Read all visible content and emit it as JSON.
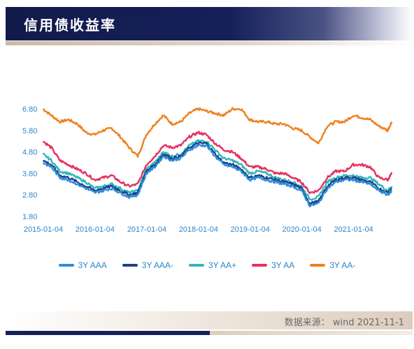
{
  "header": {
    "title": "信用债收益率"
  },
  "footer": {
    "source": "数据来源： wind 2021-11-1"
  },
  "chart_data": {
    "type": "line",
    "title": "",
    "xlabel": "",
    "ylabel": "",
    "ylim": [
      1.8,
      6.8
    ],
    "yticks": [
      "6.80",
      "5.80",
      "4.80",
      "3.80",
      "2.80",
      "1.80"
    ],
    "x_range": [
      "2015-01-04",
      "2021-10-29"
    ],
    "xticks": [
      "2015-01-04",
      "2016-01-04",
      "2017-01-04",
      "2018-01-04",
      "2019-01-04",
      "2020-01-04",
      "2021-01-04"
    ],
    "grid": false,
    "legend_position": "bottom",
    "x": [
      "2015-01",
      "2015-03",
      "2015-05",
      "2015-07",
      "2015-09",
      "2015-11",
      "2016-01",
      "2016-03",
      "2016-05",
      "2016-07",
      "2016-09",
      "2016-11",
      "2017-01",
      "2017-03",
      "2017-05",
      "2017-07",
      "2017-09",
      "2017-11",
      "2018-01",
      "2018-03",
      "2018-05",
      "2018-07",
      "2018-09",
      "2018-11",
      "2019-01",
      "2019-03",
      "2019-05",
      "2019-07",
      "2019-09",
      "2019-11",
      "2020-01",
      "2020-03",
      "2020-05",
      "2020-07",
      "2020-09",
      "2020-11",
      "2021-01",
      "2021-03",
      "2021-05",
      "2021-07",
      "2021-09",
      "2021-10"
    ],
    "series": [
      {
        "name": "3Y AAA",
        "color": "#2e8fd6",
        "values": [
          4.3,
          4.1,
          3.6,
          3.5,
          3.3,
          3.1,
          2.9,
          3.0,
          3.1,
          2.9,
          2.7,
          2.8,
          3.8,
          4.1,
          4.6,
          4.4,
          4.5,
          4.9,
          5.1,
          5.1,
          4.6,
          4.2,
          4.1,
          3.9,
          3.5,
          3.6,
          3.5,
          3.4,
          3.3,
          3.2,
          3.0,
          2.3,
          2.4,
          3.1,
          3.4,
          3.5,
          3.5,
          3.4,
          3.3,
          3.0,
          2.8,
          3.0
        ]
      },
      {
        "name": "3Y AAA-",
        "color": "#1d3f8f",
        "values": [
          4.4,
          4.2,
          3.7,
          3.6,
          3.4,
          3.2,
          3.0,
          3.1,
          3.2,
          3.0,
          2.8,
          2.9,
          3.9,
          4.2,
          4.7,
          4.5,
          4.6,
          5.0,
          5.2,
          5.2,
          4.7,
          4.3,
          4.2,
          4.0,
          3.6,
          3.7,
          3.6,
          3.5,
          3.4,
          3.3,
          3.1,
          2.4,
          2.5,
          3.2,
          3.5,
          3.6,
          3.6,
          3.5,
          3.4,
          3.1,
          2.9,
          3.1
        ]
      },
      {
        "name": "3Y AA+",
        "color": "#36b6b9",
        "values": [
          4.7,
          4.4,
          3.9,
          3.8,
          3.6,
          3.4,
          3.1,
          3.2,
          3.3,
          3.1,
          2.9,
          3.0,
          4.0,
          4.3,
          4.8,
          4.6,
          4.7,
          5.1,
          5.3,
          5.3,
          4.9,
          4.5,
          4.4,
          4.2,
          3.8,
          3.9,
          3.8,
          3.6,
          3.5,
          3.4,
          3.2,
          2.6,
          2.7,
          3.4,
          3.6,
          3.7,
          3.7,
          3.6,
          3.6,
          3.3,
          3.0,
          3.2
        ]
      },
      {
        "name": "3Y AA",
        "color": "#e5315e",
        "values": [
          5.3,
          5.0,
          4.4,
          4.2,
          4.0,
          3.8,
          3.5,
          3.6,
          3.7,
          3.4,
          3.2,
          3.3,
          4.2,
          4.6,
          5.1,
          5.0,
          5.1,
          5.5,
          5.7,
          5.6,
          5.2,
          4.9,
          4.8,
          4.5,
          4.1,
          4.1,
          4.0,
          3.8,
          3.8,
          3.6,
          3.4,
          2.9,
          3.0,
          3.6,
          3.9,
          3.9,
          4.2,
          4.2,
          4.1,
          3.6,
          3.5,
          3.8
        ]
      },
      {
        "name": "3Y AA-",
        "color": "#ee8120",
        "values": [
          6.8,
          6.5,
          6.2,
          6.3,
          6.1,
          5.7,
          5.6,
          5.8,
          5.9,
          5.5,
          5.0,
          4.6,
          5.6,
          6.1,
          6.5,
          6.1,
          6.2,
          6.6,
          6.8,
          6.7,
          6.6,
          6.5,
          6.8,
          6.8,
          6.3,
          6.2,
          6.2,
          6.1,
          6.1,
          5.9,
          5.8,
          5.5,
          5.2,
          6.0,
          6.2,
          6.2,
          6.5,
          6.4,
          6.3,
          6.0,
          5.8,
          6.2
        ]
      }
    ]
  }
}
